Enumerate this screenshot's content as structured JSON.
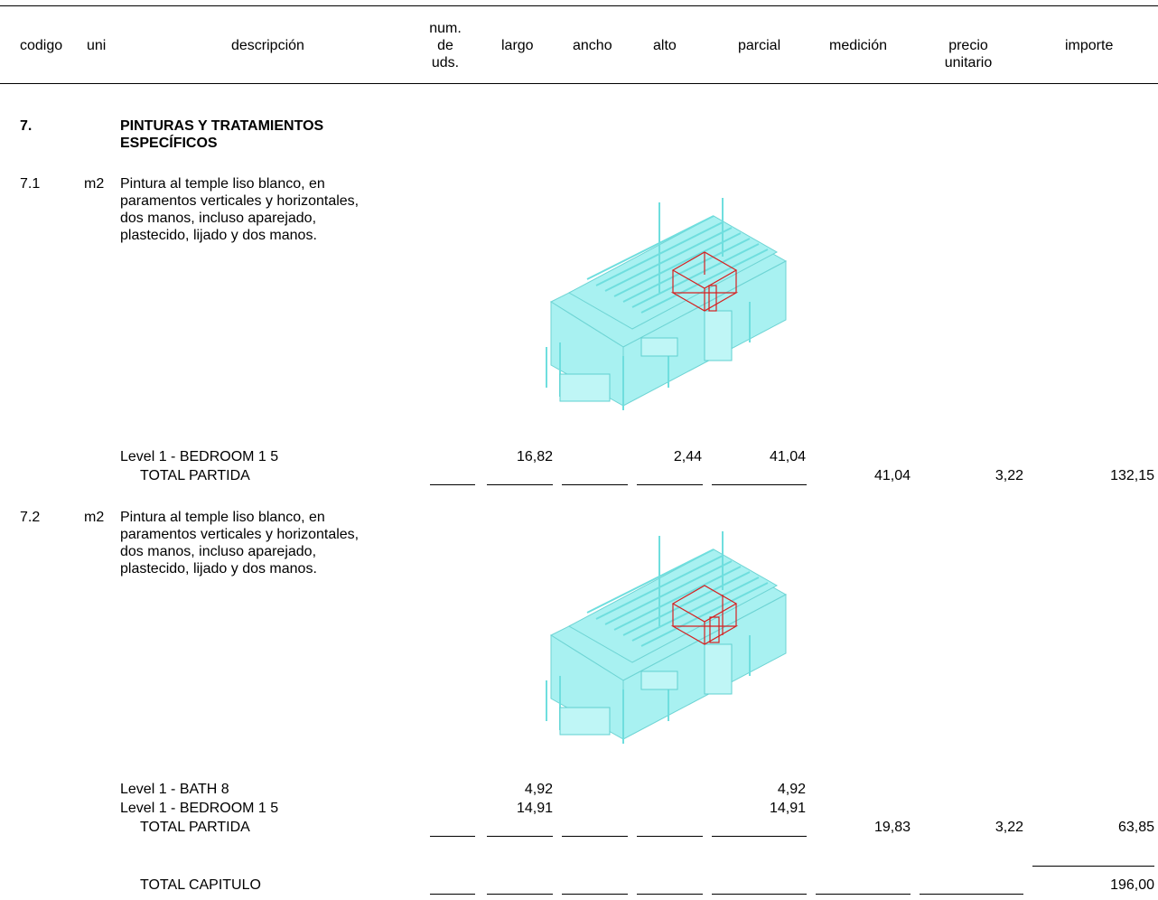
{
  "header": {
    "codigo": "codigo",
    "uni": "uni",
    "descripcion": "descripción",
    "num_line1": "num.",
    "num_line2": "de",
    "num_line3": "uds.",
    "largo": "largo",
    "ancho": "ancho",
    "alto": "alto",
    "parcial": "parcial",
    "medicion": "medición",
    "precio_line1": "precio",
    "precio_line2": "unitario",
    "importe": "importe"
  },
  "chapter": {
    "code": "7.",
    "title_line1": "PINTURAS Y TRATAMIENTOS",
    "title_line2": "ESPECÍFICOS"
  },
  "items": [
    {
      "code": "7.1",
      "unit": "m2",
      "desc_lines": [
        "Pintura al temple liso blanco, en",
        "paramentos verticales y horizontales,",
        "dos manos, incluso aparejado,",
        "plastecido, lijado y dos manos."
      ],
      "lines": [
        {
          "label": "Level 1 - BEDROOM 1 5",
          "largo": "16,82",
          "alto": "2,44",
          "parcial": "41,04"
        }
      ],
      "total_label": "TOTAL PARTIDA",
      "medicion": "41,04",
      "precio": "3,22",
      "importe": "132,15"
    },
    {
      "code": "7.2",
      "unit": "m2",
      "desc_lines": [
        "Pintura al temple liso blanco, en",
        "paramentos verticales y horizontales,",
        "dos manos, incluso aparejado,",
        "plastecido, lijado y dos manos."
      ],
      "lines": [
        {
          "label": "Level 1 - BATH 8",
          "largo": "4,92",
          "parcial": "4,92"
        },
        {
          "label": "Level 1 - BEDROOM 1 5",
          "largo": "14,91",
          "parcial": "14,91"
        }
      ],
      "total_label": "TOTAL PARTIDA",
      "medicion": "19,83",
      "precio": "3,22",
      "importe": "63,85"
    }
  ],
  "chapter_total": {
    "label": "TOTAL CAPITULO",
    "importe": "196,00"
  },
  "colors": {
    "model_fill": "#7fe8e8",
    "model_stroke": "#4cc9c9",
    "highlight": "#d62020"
  }
}
